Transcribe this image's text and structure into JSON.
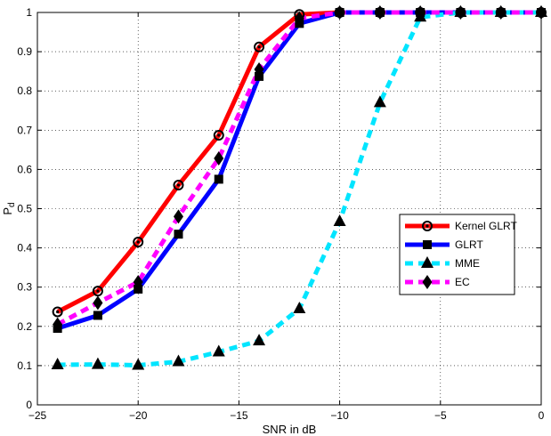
{
  "chart_data": {
    "type": "line",
    "title": "",
    "xlabel": "SNR in dB",
    "ylabel_main": "P",
    "ylabel_sub": "d",
    "xlim": [
      -25,
      0
    ],
    "ylim": [
      0,
      1
    ],
    "xticks": [
      -25,
      -20,
      -15,
      -10,
      -5,
      0
    ],
    "yticks": [
      0,
      0.1,
      0.2,
      0.3,
      0.4,
      0.5,
      0.6,
      0.7,
      0.8,
      0.9,
      1
    ],
    "grid": true,
    "legend_position": "center-right",
    "x": [
      -24,
      -22,
      -20,
      -18,
      -16,
      -14,
      -12,
      -10,
      -8,
      -6,
      -4,
      -2,
      0
    ],
    "series": [
      {
        "name": "Kernel GLRT",
        "color": "#ff0000",
        "dash": "solid",
        "marker": "circle",
        "values": [
          0.237,
          0.29,
          0.415,
          0.56,
          0.687,
          0.912,
          0.995,
          1,
          1,
          1,
          1,
          1,
          1
        ]
      },
      {
        "name": "GLRT",
        "color": "#0000ff",
        "dash": "solid",
        "marker": "square",
        "values": [
          0.195,
          0.228,
          0.295,
          0.435,
          0.575,
          0.837,
          0.972,
          1,
          1,
          1,
          1,
          1,
          1
        ]
      },
      {
        "name": "MME",
        "color": "#00e5ff",
        "dash": "dashed",
        "marker": "triangle",
        "values": [
          0.102,
          0.103,
          0.101,
          0.11,
          0.135,
          0.163,
          0.245,
          0.467,
          0.77,
          0.988,
          1,
          1,
          1
        ]
      },
      {
        "name": "EC",
        "color": "#ff00ff",
        "dash": "dashed",
        "marker": "diamond",
        "values": [
          0.205,
          0.26,
          0.313,
          0.48,
          0.628,
          0.855,
          0.985,
          1,
          1,
          1,
          1,
          1,
          1
        ]
      }
    ]
  }
}
